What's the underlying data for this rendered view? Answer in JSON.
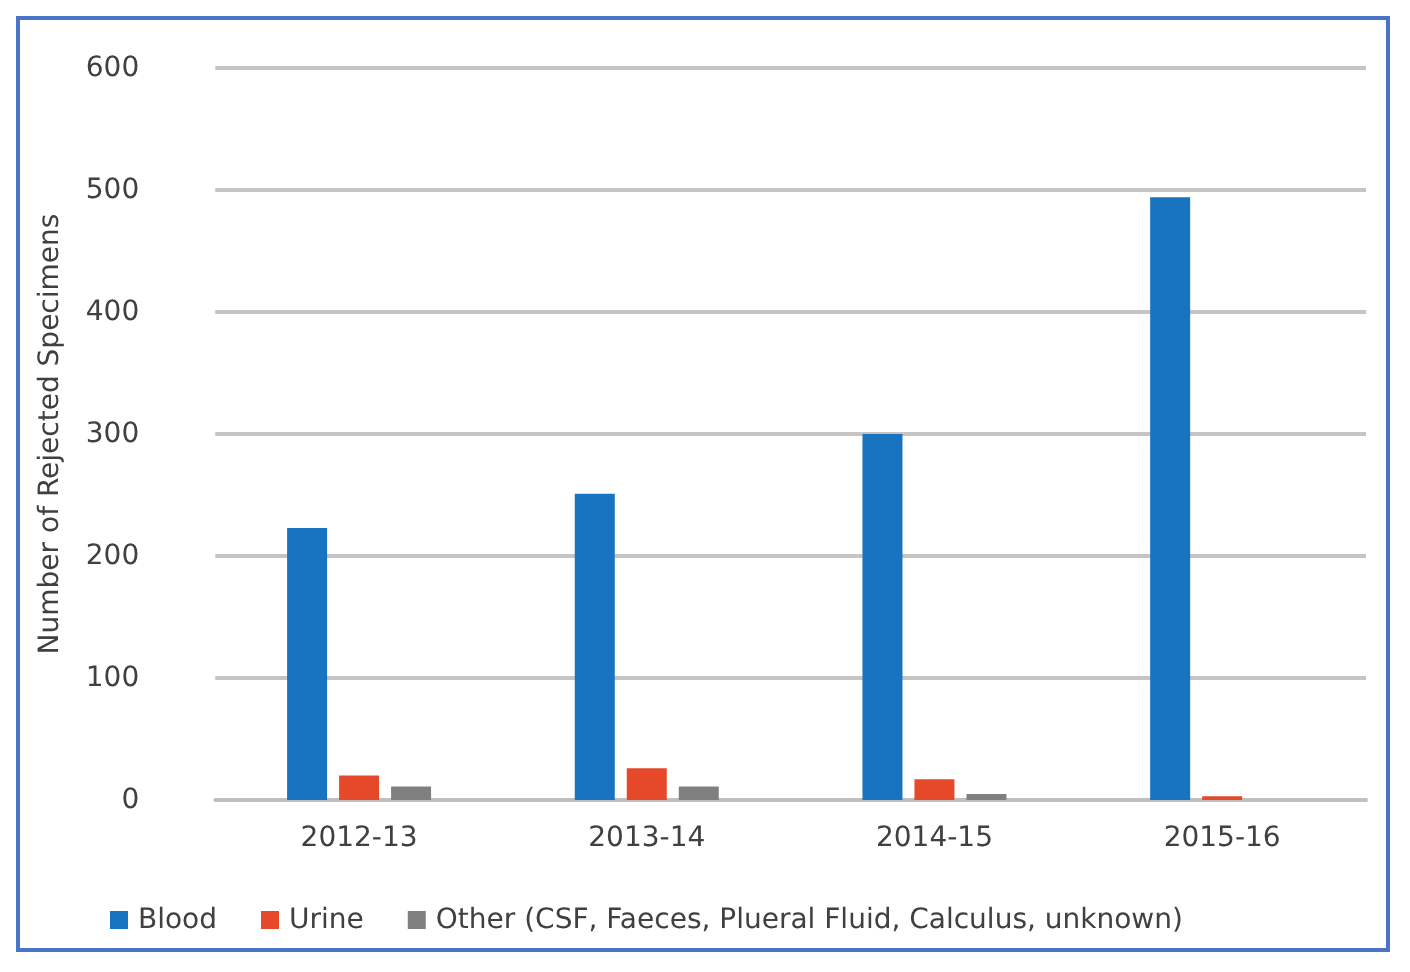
{
  "chart_data": {
    "type": "bar",
    "ylabel": "Number of Rejected Specimens",
    "categories": [
      "2012-13",
      "2013-14",
      "2014-15",
      "2015-16"
    ],
    "series": [
      {
        "name": "Blood",
        "color": "#1874c1",
        "values": [
          223,
          251,
          300,
          494
        ]
      },
      {
        "name": "Urine",
        "color": "#e5492a",
        "values": [
          20,
          26,
          17,
          3
        ]
      },
      {
        "name": "Other (CSF, Faeces, Plueral Fluid, Calculus, unknown)",
        "color": "#808080",
        "values": [
          11,
          11,
          5,
          0
        ]
      }
    ],
    "ylim": [
      0,
      600
    ],
    "yticks": [
      0,
      100,
      200,
      300,
      400,
      500,
      600
    ],
    "grid": "y",
    "legend": "bottom"
  }
}
